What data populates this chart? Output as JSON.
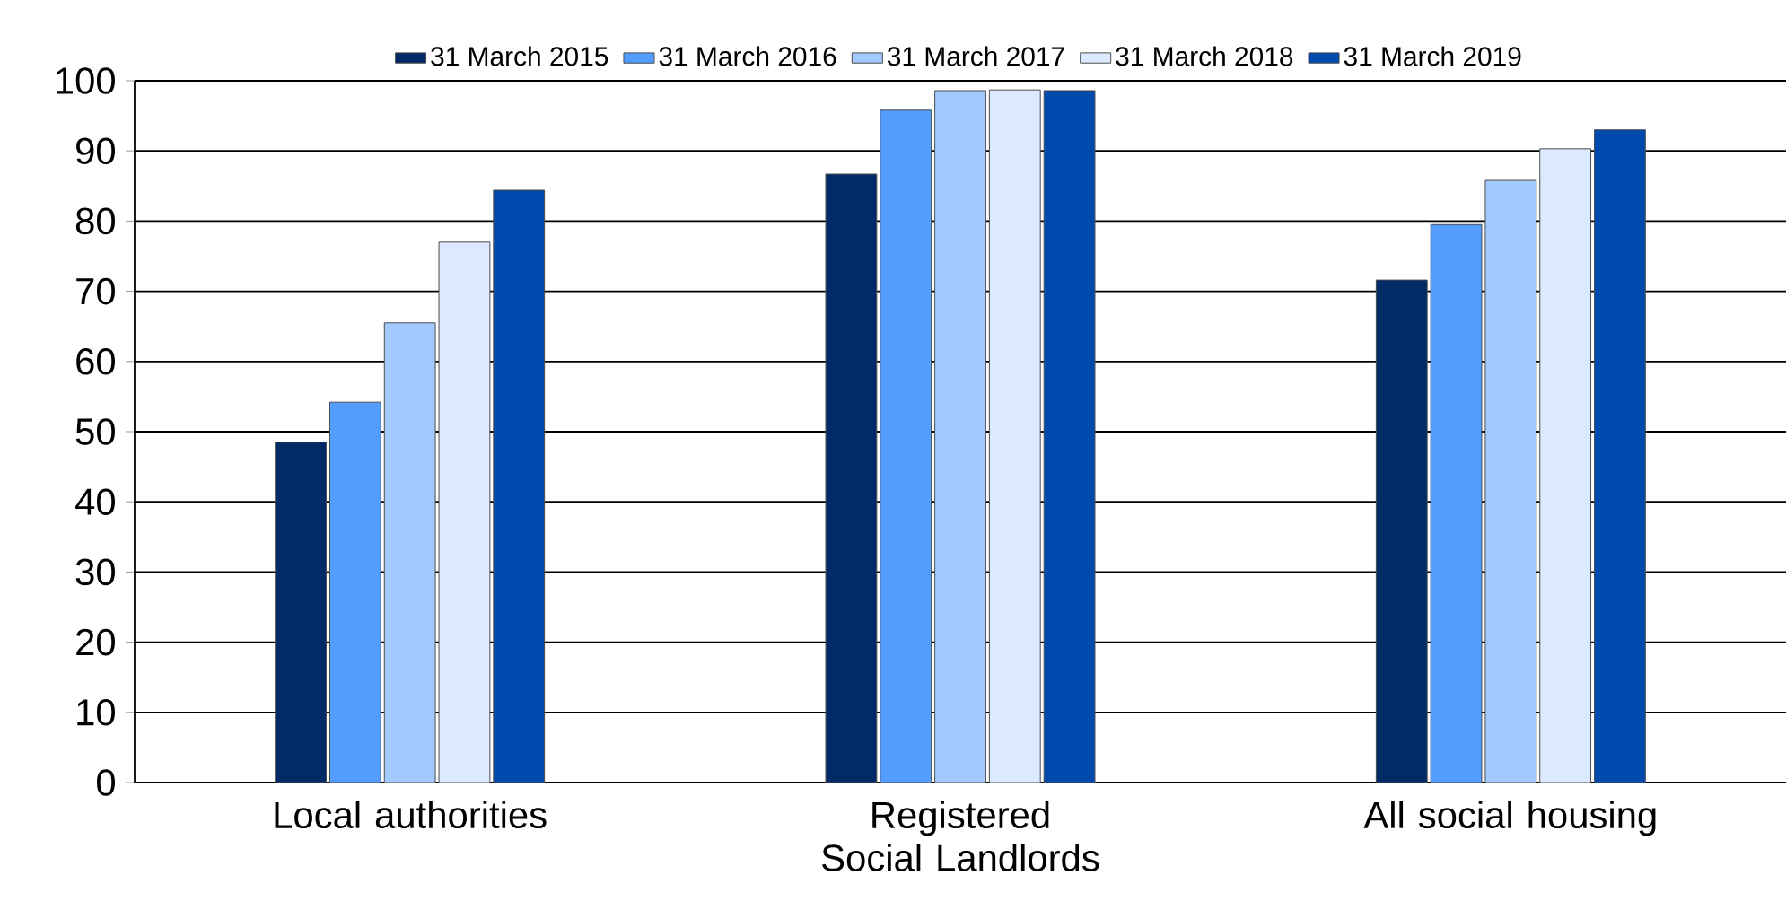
{
  "chart_data": {
    "type": "bar",
    "categories": [
      "Local authorities",
      "Registered Social Landlords",
      "All social housing"
    ],
    "series": [
      {
        "name": "31 March 2015",
        "color": "#002b66",
        "values": [
          48.5,
          86.7,
          71.6
        ]
      },
      {
        "name": "31 March 2016",
        "color": "#539dff",
        "values": [
          54.2,
          95.8,
          79.5
        ]
      },
      {
        "name": "31 March 2017",
        "color": "#a3caff",
        "values": [
          65.5,
          98.6,
          85.8
        ]
      },
      {
        "name": "31 March 2018",
        "color": "#dceaff",
        "values": [
          77.0,
          98.7,
          90.3
        ]
      },
      {
        "name": "31 March 2019",
        "color": "#004aad",
        "values": [
          84.4,
          98.6,
          93.0
        ]
      }
    ],
    "ylim": [
      0,
      100
    ],
    "yticks": [
      0,
      10,
      20,
      30,
      40,
      50,
      60,
      70,
      80,
      90,
      100
    ],
    "grid": "y",
    "legend": "top"
  }
}
